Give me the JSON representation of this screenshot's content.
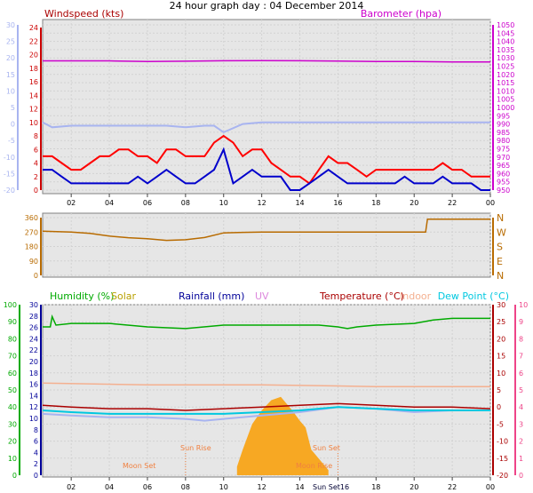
{
  "title": "24 hour graph day : 04 December 2014",
  "colors": {
    "wind_speed": "#cc0000",
    "wind_line": "#ff0000",
    "gust": "#0000cc",
    "barometer": "#cc00cc",
    "temp_lightblue": "#a8b4f0",
    "wind_dir": "#b86b00",
    "humidity": "#00aa00",
    "solar": "#b8a000",
    "rainfall": "#000099",
    "uv": "#dd88dd",
    "temperature": "#aa0000",
    "indoor": "#f4b090",
    "dewpoint": "#00c8e0",
    "pink_axis": "#ee4488",
    "sun_fill": "#f7a823",
    "sun_text": "#f08040",
    "panel_bg": "#e6e6e6"
  },
  "chart_data": [
    {
      "type": "line",
      "panel": "wind_barometer",
      "labels": {
        "left_title": "Windspeed (kts)",
        "right_title": "Barometer (hpa)"
      },
      "x_ticks": [
        "02",
        "04",
        "06",
        "08",
        "10",
        "12",
        "14",
        "16",
        "18",
        "20",
        "22",
        "00"
      ],
      "x_tick_hours": [
        2,
        4,
        6,
        8,
        10,
        12,
        14,
        16,
        18,
        20,
        22,
        24
      ],
      "x_range": [
        0.5,
        24
      ],
      "y_left_outer_ticks": [
        "30",
        "25",
        "20",
        "15",
        "10",
        "5",
        "0",
        "-5",
        "-10",
        "-15",
        "-20"
      ],
      "y_left_outer_range": [
        -20,
        30
      ],
      "y_left_inner_ticks": [
        "24",
        "22",
        "20",
        "18",
        "16",
        "14",
        "12",
        "10",
        "8",
        "6",
        "4",
        "2",
        "0"
      ],
      "y_left_inner_range": [
        0,
        24
      ],
      "y_right_ticks": [
        "1050",
        "1045",
        "1040",
        "1035",
        "1030",
        "1025",
        "1020",
        "1015",
        "1010",
        "1005",
        "1000",
        "995",
        "990",
        "985",
        "980",
        "975",
        "970",
        "965",
        "960",
        "955",
        "950"
      ],
      "y_right_range": [
        950,
        1050
      ],
      "series": [
        {
          "name": "Barometer (hpa)",
          "axis": "right",
          "x": [
            0.5,
            4,
            6,
            8,
            10,
            12,
            14,
            16,
            18,
            20,
            22,
            24
          ],
          "y": [
            1028.2,
            1028.2,
            1027.8,
            1028.0,
            1028.3,
            1028.4,
            1028.3,
            1028.1,
            1027.8,
            1027.8,
            1027.6,
            1027.6
          ]
        },
        {
          "axis": "left_outer",
          "x": [
            0.5,
            1,
            2,
            3,
            4,
            5,
            6,
            7,
            8,
            9,
            9.5,
            10,
            11,
            12,
            13,
            14,
            15,
            16,
            17,
            18,
            19,
            20,
            21,
            22,
            23,
            24
          ],
          "y": [
            0.5,
            -1,
            -0.5,
            -0.5,
            -0.5,
            -0.5,
            -0.5,
            -0.5,
            -1,
            -0.5,
            -0.5,
            -2.5,
            0,
            0.5,
            0.5,
            0.5,
            0.5,
            0.5,
            0.5,
            0.5,
            0.5,
            0.5,
            0.5,
            0.5,
            0.5,
            0.5
          ]
        },
        {
          "name": "Windspeed (kts)",
          "axis": "left_inner",
          "x": [
            0.5,
            1,
            1.5,
            2,
            2.5,
            3,
            3.5,
            4,
            4.5,
            5,
            5.5,
            6,
            6.5,
            7,
            7.5,
            8,
            8.5,
            9,
            9.5,
            10,
            10.5,
            11,
            11.5,
            12,
            12.5,
            13,
            13.5,
            14,
            14.5,
            15,
            15.5,
            16,
            16.5,
            17,
            17.5,
            18,
            18.5,
            19,
            19.5,
            20,
            20.5,
            21,
            21.5,
            22,
            22.5,
            23,
            23.5,
            24
          ],
          "y": [
            5,
            5,
            4,
            3,
            3,
            4,
            5,
            5,
            6,
            6,
            5,
            5,
            4,
            6,
            6,
            5,
            5,
            5,
            7,
            8,
            7,
            5,
            6,
            6,
            4,
            3,
            2,
            2,
            1,
            3,
            5,
            4,
            4,
            3,
            2,
            3,
            3,
            3,
            3,
            3,
            3,
            3,
            4,
            3,
            3,
            2,
            2,
            2
          ]
        },
        {
          "name": "Gust",
          "axis": "left_inner",
          "x": [
            0.5,
            1,
            1.5,
            2,
            2.5,
            3,
            3.5,
            4,
            4.5,
            5,
            5.5,
            6,
            6.5,
            7,
            7.5,
            8,
            8.5,
            9,
            9.5,
            10,
            10.5,
            11,
            11.5,
            12,
            12.5,
            13,
            13.5,
            14,
            14.5,
            15,
            15.5,
            16,
            16.5,
            17,
            17.5,
            18,
            18.5,
            19,
            19.5,
            20,
            20.5,
            21,
            21.5,
            22,
            22.5,
            23,
            23.5,
            24
          ],
          "y": [
            3,
            3,
            2,
            1,
            1,
            1,
            1,
            1,
            1,
            1,
            2,
            1,
            2,
            3,
            2,
            1,
            1,
            2,
            3,
            6,
            1,
            2,
            3,
            2,
            2,
            2,
            0,
            0,
            1,
            2,
            3,
            2,
            1,
            1,
            1,
            1,
            1,
            1,
            2,
            1,
            1,
            1,
            2,
            1,
            1,
            1,
            0,
            0
          ]
        }
      ]
    },
    {
      "type": "line",
      "panel": "wind_direction",
      "y_left_ticks": [
        "360",
        "270",
        "180",
        "90",
        "0"
      ],
      "y_range": [
        0,
        360
      ],
      "y_right_labels": [
        "N",
        "W",
        "S",
        "E",
        "N"
      ],
      "series": [
        {
          "name": "Wind direction",
          "x": [
            0.5,
            2,
            3,
            4,
            5,
            6,
            7,
            8,
            9,
            10,
            11,
            12,
            14,
            16,
            18,
            20,
            20.6,
            20.7,
            22,
            24
          ],
          "y": [
            275,
            270,
            262,
            245,
            235,
            228,
            218,
            222,
            236,
            265,
            268,
            270,
            270,
            270,
            270,
            270,
            270,
            350,
            350,
            350
          ]
        }
      ]
    },
    {
      "type": "line",
      "panel": "temperature_humidity",
      "labels": {
        "humidity": "Humidity (%)",
        "solar": "Solar",
        "rainfall": "Rainfall (mm)",
        "uv": "UV",
        "temperature": "Temperature (°C)",
        "indoor": "Indoor",
        "dewpoint": "Dew Point (°C)"
      },
      "x_ticks": [
        "02",
        "04",
        "06",
        "08",
        "10",
        "12",
        "14",
        "16",
        "18",
        "20",
        "22",
        "00"
      ],
      "y_hum_ticks": [
        "100",
        "90",
        "80",
        "70",
        "60",
        "50",
        "40",
        "30",
        "20",
        "10",
        "0"
      ],
      "y_hum_range": [
        0,
        100
      ],
      "y_rain_ticks": [
        "30",
        "28",
        "26",
        "24",
        "22",
        "20",
        "18",
        "16",
        "14",
        "12",
        "10",
        "8",
        "6",
        "4",
        "2",
        "0"
      ],
      "y_rain_range": [
        0,
        30
      ],
      "y_temp_ticks": [
        "30",
        "25",
        "20",
        "15",
        "10",
        "5",
        "0",
        "-5",
        "-10",
        "-15",
        "-20"
      ],
      "y_temp_range": [
        -20,
        30
      ],
      "y_pink_ticks": [
        "10",
        "9",
        "8",
        "7",
        "6",
        "5",
        "4",
        "3",
        "2",
        "1",
        "0"
      ],
      "y_pink_range": [
        0,
        10
      ],
      "annotations": [
        {
          "text": "Moon Set",
          "hour": 5
        },
        {
          "text": "Sun Rise",
          "hour": 8
        },
        {
          "text": "Sun Set",
          "hour": 16
        },
        {
          "text": "Moon Rise",
          "hour": 14
        },
        {
          "text": "Sun Set16",
          "hour": 15
        }
      ],
      "series": [
        {
          "name": "Humidity (%)",
          "axis": "humidity",
          "x": [
            0.5,
            0.9,
            1,
            1.2,
            2,
            4,
            6,
            8,
            10,
            12,
            14,
            15,
            16,
            16.5,
            17,
            18,
            20,
            21,
            22,
            24
          ],
          "y": [
            87,
            87,
            93,
            88,
            89,
            89,
            87,
            86,
            88,
            88,
            88,
            88,
            87,
            86,
            87,
            88,
            89,
            91,
            92,
            92
          ]
        },
        {
          "name": "Indoor",
          "axis": "temp",
          "x": [
            0.5,
            6,
            12,
            18,
            24
          ],
          "y": [
            7,
            6.5,
            6.5,
            6,
            6
          ]
        },
        {
          "name": "Temperature (°C)",
          "axis": "temp",
          "x": [
            0.5,
            2,
            4,
            6,
            8,
            10,
            12,
            14,
            16,
            18,
            20,
            22,
            24
          ],
          "y": [
            0.5,
            0,
            -0.5,
            -0.5,
            -1,
            -0.5,
            0,
            0.5,
            1,
            0.5,
            0,
            0,
            -0.5
          ]
        },
        {
          "name": "Dew Point (°C)",
          "axis": "temp",
          "x": [
            0.5,
            2,
            4,
            6,
            8,
            10,
            12,
            14,
            16,
            18,
            20,
            22,
            24
          ],
          "y": [
            -1,
            -1.5,
            -2,
            -2,
            -2,
            -2,
            -1.5,
            -1,
            0,
            -0.5,
            -1,
            -1,
            -1
          ]
        },
        {
          "axis": "temp",
          "x": [
            0.5,
            2,
            4,
            6,
            8,
            9,
            10,
            12,
            14,
            16,
            18,
            20,
            22,
            24
          ],
          "y": [
            -2,
            -2.5,
            -3,
            -3,
            -3.5,
            -4,
            -3.5,
            -2.5,
            -1.5,
            0,
            -0.5,
            -1.5,
            -1,
            -1
          ]
        },
        {
          "name": "Solar",
          "axis": "solar",
          "x": [
            10.7,
            11,
            11.5,
            12,
            12.5,
            13,
            13.3,
            13.6,
            14,
            14.3,
            14.6,
            15.5
          ],
          "y": [
            0.5,
            1.5,
            3,
            3.8,
            4.4,
            4.6,
            4.2,
            3.8,
            3.2,
            2.8,
            1.5,
            0.3
          ]
        }
      ]
    }
  ]
}
